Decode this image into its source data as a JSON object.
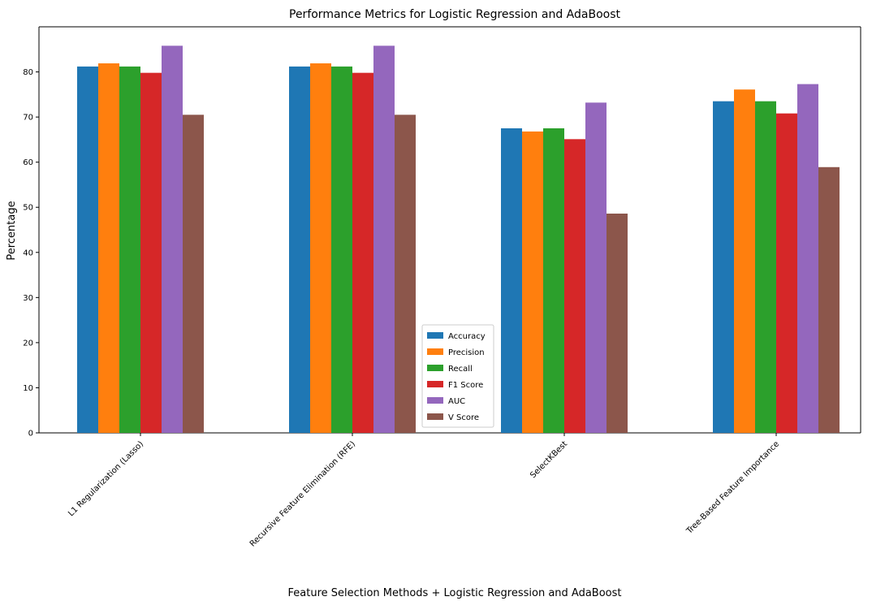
{
  "chart_data": {
    "type": "bar",
    "title": "Performance Metrics for Logistic Regression and AdaBoost",
    "xlabel": "Feature Selection Methods + Logistic Regression and AdaBoost",
    "ylabel": "Percentage",
    "ylim": [
      0,
      90
    ],
    "yticks": [
      0,
      10,
      20,
      30,
      40,
      50,
      60,
      70,
      80
    ],
    "grid": false,
    "legend_position": "center-bottom",
    "categories": [
      "L1 Regularization (Lasso)",
      "Recursive Feature Elimination (RFE)",
      "SelectKBest",
      "Tree-Based Feature Importance"
    ],
    "series": [
      {
        "name": "Accuracy",
        "color": "#1f77b4",
        "values": [
          81.2,
          81.2,
          67.5,
          73.5
        ]
      },
      {
        "name": "Precision",
        "color": "#ff7f0e",
        "values": [
          81.9,
          81.9,
          66.8,
          76.1
        ]
      },
      {
        "name": "Recall",
        "color": "#2ca02c",
        "values": [
          81.2,
          81.2,
          67.5,
          73.5
        ]
      },
      {
        "name": "F1 Score",
        "color": "#d62728",
        "values": [
          79.8,
          79.8,
          65.1,
          70.8
        ]
      },
      {
        "name": "AUC",
        "color": "#9467bd",
        "values": [
          85.8,
          85.8,
          73.2,
          77.3
        ]
      },
      {
        "name": "V Score",
        "color": "#8c564b",
        "values": [
          70.5,
          70.5,
          48.6,
          58.9
        ]
      }
    ]
  }
}
